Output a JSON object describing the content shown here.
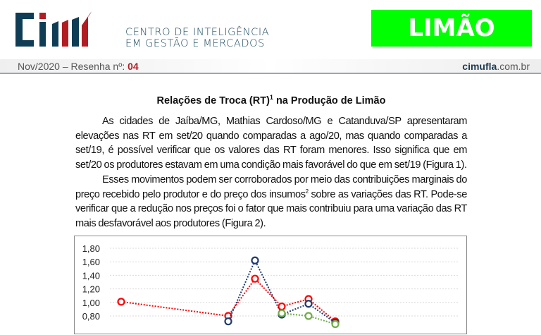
{
  "header": {
    "org_line1": "CENTRO DE INTELIGÊNCIA",
    "org_line2": "EM GESTÃO E MERCADOS",
    "logo_text": "CIM",
    "product_tag": "LIMÃO",
    "issue_prefix": "Nov/2020 – Resenha nº: ",
    "issue_number": "04",
    "site_bold": "cimufla",
    "site_rest": ".com.br",
    "colors": {
      "brand_blue": "#0f3d55",
      "brand_red": "#b01e23",
      "tag_green": "#00ff00"
    }
  },
  "article": {
    "title_a": "Relações de Troca (RT)",
    "title_sup": "1",
    "title_b": " na Produção de Limão",
    "p1": "As cidades de Jaíba/MG, Mathias Cardoso/MG e Catanduva/SP apresentaram elevações nas RT em set/20 quando comparadas a ago/20, mas quando comparadas a set/19, é possível verificar que os valores das RT foram menores. Isso significa que em set/20 os produtores estavam em uma condição mais favorável do que em set/19 (Figura 1).",
    "p2_a": "Esses movimentos podem ser corroborados por meio das contribuições marginais do preço recebido pelo produtor e do preço dos insumos",
    "p2_sup": "2",
    "p2_b": " sobre as variações das RT. Pode-se verificar que a redução nos preços foi o fator que mais contribuiu para uma variação das RT mais desfavorável aos produtores (Figura 2)."
  },
  "chart_data": {
    "type": "line",
    "ylim": [
      0.8,
      1.8
    ],
    "grid": true,
    "y_ticks": [
      "1,80",
      "1,60",
      "1,40",
      "1,20",
      "1,00",
      "0,80"
    ],
    "y_tick_values": [
      1.8,
      1.6,
      1.4,
      1.2,
      1.0,
      0.8
    ],
    "series": [
      {
        "color": "#ff0000",
        "points": [
          [
            0,
            1.01
          ],
          [
            4,
            0.8
          ],
          [
            5,
            1.35
          ],
          [
            6,
            0.94
          ],
          [
            7,
            1.05
          ],
          [
            8,
            0.72
          ]
        ]
      },
      {
        "color": "#1f3a6e",
        "points": [
          [
            4,
            0.72
          ],
          [
            5,
            1.62
          ],
          [
            6,
            0.82
          ],
          [
            7,
            0.98
          ],
          [
            8,
            0.7
          ]
        ]
      },
      {
        "color": "#70ad47",
        "points": [
          [
            6,
            0.84
          ],
          [
            7,
            0.8
          ],
          [
            8,
            0.68
          ]
        ]
      }
    ]
  }
}
